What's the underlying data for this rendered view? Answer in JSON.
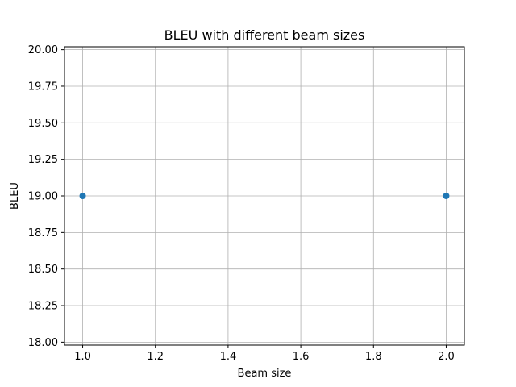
{
  "chart_data": {
    "type": "scatter",
    "title": "BLEU with different beam sizes",
    "xlabel": "Beam size",
    "ylabel": "BLEU",
    "xlim": [
      0.95,
      2.05
    ],
    "ylim": [
      17.98,
      20.02
    ],
    "x_ticks": [
      1.0,
      1.2,
      1.4,
      1.6,
      1.8,
      2.0
    ],
    "x_tick_labels": [
      "1.0",
      "1.2",
      "1.4",
      "1.6",
      "1.8",
      "2.0"
    ],
    "y_ticks": [
      18.0,
      18.25,
      18.5,
      18.75,
      19.0,
      19.25,
      19.5,
      19.75,
      20.0
    ],
    "y_tick_labels": [
      "18.00",
      "18.25",
      "18.50",
      "18.75",
      "19.00",
      "19.25",
      "19.50",
      "19.75",
      "20.00"
    ],
    "grid": true,
    "series": [
      {
        "x": [
          1,
          2
        ],
        "y": [
          19.0,
          19.0
        ],
        "color": "#1f77b4"
      }
    ]
  }
}
